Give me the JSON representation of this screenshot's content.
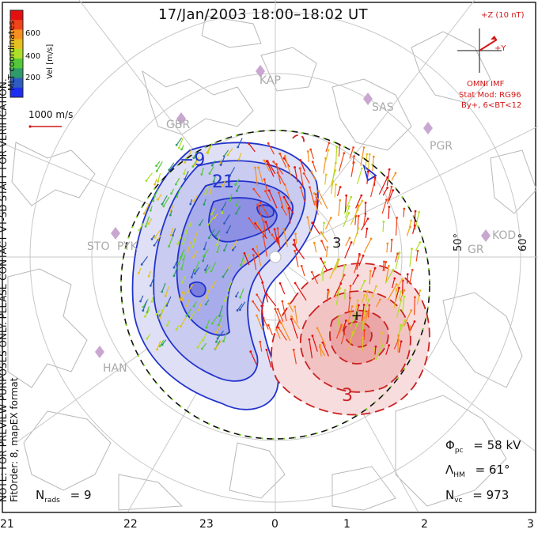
{
  "header": {
    "title": "17/Jan/2003 18:00–18:02 UT"
  },
  "side_notes": {
    "note": "NOTE: FOR PREVIEW PURPOSES ONLY. PLEASE CONTACT VT-SD STAFF FOR VERIFICATION.",
    "fit": "FitOrder: 8, mapEX format"
  },
  "legend": {
    "colorbar_title": "Vel [m/s]",
    "colorbar_ticks": [
      "600",
      "400",
      "200"
    ],
    "mlt_label": "MLT coordinates",
    "scale_label": "1000 m/s",
    "colors": [
      "#e41010",
      "#f2441a",
      "#f59020",
      "#e6c020",
      "#aee02a",
      "#55c83a",
      "#2f9a6a",
      "#2f5cc0",
      "#1e2ef0"
    ]
  },
  "imf": {
    "z_label": "+Z (10 nT)",
    "y_label": "+Y",
    "source": "OMNI IMF",
    "model": "Stat Mod: RG96",
    "condition": "By+, 6<BT<12"
  },
  "stations": [
    {
      "code": "KAP"
    },
    {
      "code": "GBR"
    },
    {
      "code": "SAS"
    },
    {
      "code": "PGR"
    },
    {
      "code": "STO"
    },
    {
      "code": "PYK"
    },
    {
      "code": "KOD"
    },
    {
      "code": "HAN"
    },
    {
      "code": "GR"
    }
  ],
  "latitude_labels": [
    "50°",
    "60°"
  ],
  "contour_labels": {
    "neg_outer": "−9",
    "neg_inner": "21",
    "pos": "3",
    "mid": "3"
  },
  "stats": {
    "phi_pc_symbol": "Φ",
    "phi_pc_sub": "pc",
    "phi_pc_value": "= 58 kV",
    "lambda_hm_symbol": "Λ",
    "lambda_hm_sub": "HM",
    "lambda_hm_value": "= 61°",
    "n_vc_symbol": "N",
    "n_vc_sub": "vc",
    "n_vc_value": "= 973",
    "n_rads_symbol": "N",
    "n_rads_sub": "rads",
    "n_rads_value": "= 9"
  },
  "mlt_axis": [
    "21",
    "22",
    "23",
    "0",
    "1",
    "2",
    "3"
  ]
}
